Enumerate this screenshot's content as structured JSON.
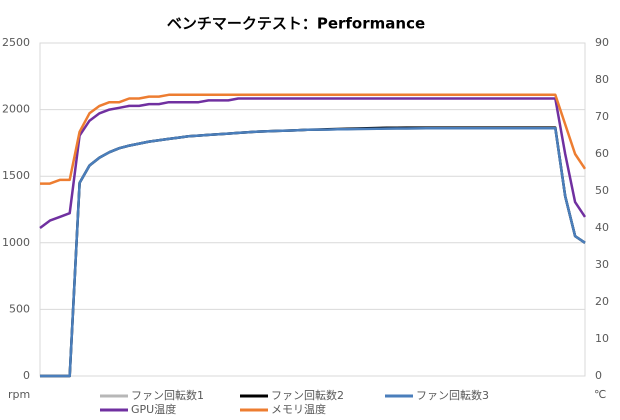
{
  "chart_data": {
    "type": "line",
    "title": "ベンチマークテスト：Performance",
    "y_label": "rpm",
    "y2_label": "℃",
    "ylim": [
      0,
      2500
    ],
    "yticks": [
      0,
      500,
      1000,
      1500,
      2000,
      2500
    ],
    "y2lim": [
      0,
      90
    ],
    "y2ticks": [
      0,
      10,
      20,
      30,
      40,
      50,
      60,
      70,
      80,
      90
    ],
    "grid": true,
    "series": [
      {
        "name": "ファン回転数1",
        "color": "#b7b7b7",
        "values": [
          0,
          0,
          0,
          0,
          1450,
          1580,
          1640,
          1680,
          1710,
          1730,
          1745,
          1760,
          1770,
          1780,
          1790,
          1800,
          1805,
          1810,
          1815,
          1820,
          1825,
          1830,
          1835,
          1838,
          1840,
          1842,
          1845,
          1848,
          1850,
          1850,
          1852,
          1853,
          1854,
          1855,
          1856,
          1857,
          1858,
          1858,
          1859,
          1860,
          1860,
          1860,
          1860,
          1860,
          1860,
          1860,
          1860,
          1860,
          1860,
          1860,
          1860,
          1860,
          1860,
          1350,
          1050,
          1000
        ]
      },
      {
        "name": "ファン回転数2",
        "color": "#000000",
        "values": [
          0,
          0,
          0,
          0,
          1450,
          1580,
          1640,
          1680,
          1710,
          1730,
          1745,
          1760,
          1770,
          1780,
          1790,
          1800,
          1805,
          1810,
          1815,
          1820,
          1825,
          1830,
          1835,
          1838,
          1840,
          1842,
          1845,
          1848,
          1850,
          1852,
          1854,
          1856,
          1858,
          1860,
          1862,
          1863,
          1864,
          1865,
          1865,
          1865,
          1865,
          1865,
          1865,
          1865,
          1865,
          1865,
          1865,
          1865,
          1865,
          1865,
          1865,
          1865,
          1865,
          1350,
          1050,
          1000
        ]
      },
      {
        "name": "ファン回転数3",
        "color": "#4a7ebb",
        "values": [
          0,
          0,
          0,
          0,
          1450,
          1580,
          1640,
          1680,
          1710,
          1730,
          1745,
          1760,
          1770,
          1780,
          1790,
          1800,
          1805,
          1810,
          1815,
          1820,
          1825,
          1830,
          1835,
          1838,
          1840,
          1842,
          1845,
          1848,
          1850,
          1850,
          1852,
          1853,
          1854,
          1855,
          1856,
          1857,
          1858,
          1858,
          1859,
          1860,
          1860,
          1860,
          1860,
          1860,
          1860,
          1860,
          1860,
          1860,
          1860,
          1860,
          1860,
          1860,
          1860,
          1350,
          1050,
          1000
        ]
      },
      {
        "name": "GPU温度",
        "color": "#7030a0",
        "axis": "y2",
        "values": [
          40,
          42,
          43,
          44,
          65,
          69,
          71,
          72,
          72.5,
          73,
          73,
          73.5,
          73.5,
          74,
          74,
          74,
          74,
          74.5,
          74.5,
          74.5,
          75,
          75,
          75,
          75,
          75,
          75,
          75,
          75,
          75,
          75,
          75,
          75,
          75,
          75,
          75,
          75,
          75,
          75,
          75,
          75,
          75,
          75,
          75,
          75,
          75,
          75,
          75,
          75,
          75,
          75,
          75,
          75,
          75,
          60,
          47,
          43
        ]
      },
      {
        "name": "メモリ温度",
        "color": "#ed7d31",
        "axis": "y2",
        "values": [
          52,
          52,
          53,
          53,
          66,
          71,
          73,
          74,
          74,
          75,
          75,
          75.5,
          75.5,
          76,
          76,
          76,
          76,
          76,
          76,
          76,
          76,
          76,
          76,
          76,
          76,
          76,
          76,
          76,
          76,
          76,
          76,
          76,
          76,
          76,
          76,
          76,
          76,
          76,
          76,
          76,
          76,
          76,
          76,
          76,
          76,
          76,
          76,
          76,
          76,
          76,
          76,
          76,
          76,
          68,
          60,
          56
        ]
      }
    ]
  }
}
